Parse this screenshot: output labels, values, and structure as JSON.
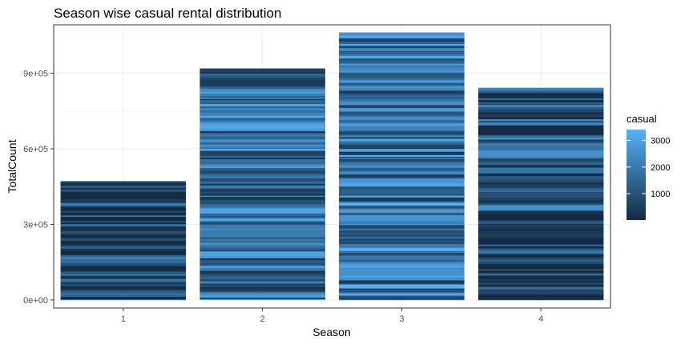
{
  "chart_data": {
    "type": "bar",
    "title": "Season wise casual rental distribution",
    "xlabel": "Season",
    "ylabel": "TotalCount",
    "categories": [
      "1",
      "2",
      "3",
      "4"
    ],
    "values": [
      471348,
      918589,
      1061129,
      841613
    ],
    "ylim": [
      -32000,
      1092000
    ],
    "yticks": [
      0,
      300000,
      600000,
      900000
    ],
    "ytick_labels": [
      "0e+00",
      "3e+05",
      "6e+05",
      "9e+05"
    ],
    "grid": true,
    "legend": {
      "title": "casual",
      "position": "right",
      "ticks": [
        1000,
        2000,
        3000
      ],
      "tick_labels": [
        "1000",
        "2000",
        "3000"
      ],
      "range": [
        2,
        3410
      ],
      "low_color": "#132B43",
      "high_color": "#56B1F7"
    }
  }
}
